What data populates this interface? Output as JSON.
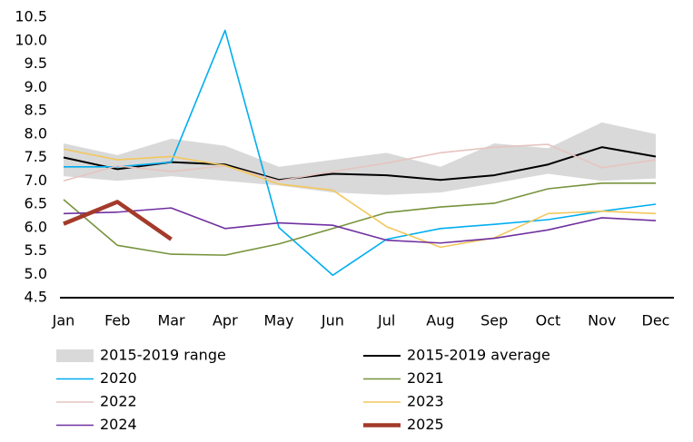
{
  "chart_data": {
    "type": "line",
    "categories": [
      "Jan",
      "Feb",
      "Mar",
      "Apr",
      "May",
      "Jun",
      "Jul",
      "Aug",
      "Sep",
      "Oct",
      "Nov",
      "Dec"
    ],
    "ylim": [
      4.5,
      10.5
    ],
    "yticks": [
      4.5,
      {
        "value": 5,
        "label": "5.0"
      },
      5.5,
      {
        "value": 6,
        "label": "6.0"
      },
      6.5,
      {
        "value": 7,
        "label": "7.0"
      },
      7.5,
      {
        "value": 8,
        "label": "8.0"
      },
      8.5,
      {
        "value": 9,
        "label": "9.0"
      },
      9.5,
      {
        "value": 10,
        "label": "10.0"
      },
      10.5
    ],
    "range": {
      "name": "2015-2019 range",
      "color": "#d9d9d9",
      "low": [
        7.1,
        7.0,
        7.1,
        7.0,
        6.9,
        6.75,
        6.7,
        6.75,
        6.95,
        7.15,
        7.0,
        7.05
      ],
      "high": [
        7.8,
        7.55,
        7.9,
        7.75,
        7.3,
        7.45,
        7.6,
        7.3,
        7.8,
        7.7,
        8.25,
        8.0
      ]
    },
    "series": [
      {
        "name": "2015-2019 average",
        "color": "#000000",
        "width": 2,
        "values": [
          7.5,
          7.25,
          7.4,
          7.35,
          7.02,
          7.15,
          7.12,
          7.02,
          7.12,
          7.35,
          7.72,
          7.52
        ]
      },
      {
        "name": "2020",
        "color": "#00aeef",
        "width": 1.6,
        "values": [
          7.3,
          7.3,
          7.4,
          10.22,
          6.0,
          4.98,
          5.75,
          5.98,
          6.07,
          6.17,
          6.35,
          6.5
        ]
      },
      {
        "name": "2021",
        "color": "#77933c",
        "width": 1.6,
        "values": [
          6.6,
          5.62,
          5.43,
          5.41,
          5.65,
          5.98,
          6.32,
          6.44,
          6.52,
          6.83,
          6.95,
          6.95
        ]
      },
      {
        "name": "2022",
        "color": "#e6c4c0",
        "width": 1.6,
        "values": [
          7.0,
          7.32,
          7.2,
          7.32,
          7.0,
          7.2,
          7.38,
          7.6,
          7.72,
          7.78,
          7.28,
          7.45
        ]
      },
      {
        "name": "2023",
        "color": "#f2c75c",
        "width": 1.6,
        "values": [
          7.68,
          7.45,
          7.52,
          7.33,
          6.93,
          6.8,
          6.02,
          5.58,
          5.78,
          6.3,
          6.35,
          6.3
        ]
      },
      {
        "name": "2024",
        "color": "#7030a0",
        "width": 1.6,
        "values": [
          6.3,
          6.33,
          6.42,
          5.98,
          6.1,
          6.05,
          5.73,
          5.67,
          5.77,
          5.95,
          6.21,
          6.15
        ]
      },
      {
        "name": "2025",
        "color": "#a33a2a",
        "width": 4.5,
        "values": [
          6.08,
          6.55,
          5.75,
          null,
          null,
          null,
          null,
          null,
          null,
          null,
          null,
          null
        ]
      }
    ]
  }
}
